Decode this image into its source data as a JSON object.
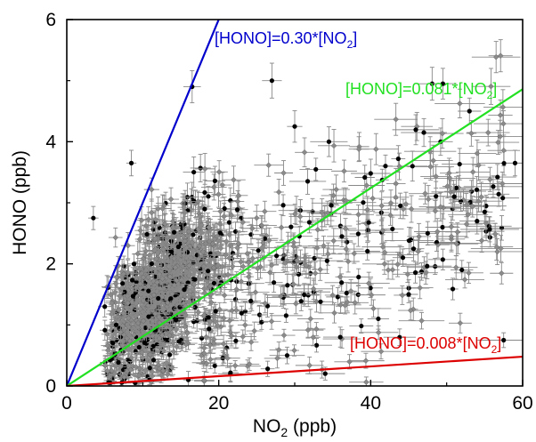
{
  "chart_data": {
    "type": "scatter",
    "title": "",
    "xlabel": "NO",
    "xlabel_sub": "2",
    "xlabel_unit": " (ppb)",
    "ylabel": "HONO (ppb)",
    "xlim": [
      0,
      60
    ],
    "ylim": [
      0,
      6
    ],
    "xticks": [
      0,
      20,
      40,
      60
    ],
    "yticks": [
      0,
      2,
      4,
      6
    ],
    "grid": false,
    "legend": "none",
    "lines": [
      {
        "slope": 0.3,
        "color": "#0000cc",
        "label_main": "[HONO]=0.30*[NO",
        "label_sub": "2",
        "label_end": "]"
      },
      {
        "slope": 0.081,
        "color": "#22e022",
        "label_main": "[HONO]=0.081*[NO",
        "label_sub": "2",
        "label_end": "]"
      },
      {
        "slope": 0.008,
        "color": "#dd0000",
        "label_main": "[HONO]=0.008*[NO",
        "label_sub": "2",
        "label_end": "]"
      }
    ],
    "scatter_colors": {
      "black": "#000000",
      "grey": "#8a8a8a",
      "errorbar": "#888888"
    },
    "n_points": 1400,
    "points": [
      [
        3.5,
        2.75
      ],
      [
        8.5,
        3.65
      ],
      [
        16.5,
        4.9
      ],
      [
        27.0,
        5.0
      ],
      [
        49.5,
        4.95
      ],
      [
        47.0,
        4.15
      ],
      [
        53.0,
        4.5
      ],
      [
        59.0,
        3.65
      ],
      [
        30.0,
        4.25
      ],
      [
        34.5,
        4.0
      ],
      [
        45.5,
        3.6
      ],
      [
        51.0,
        3.1
      ],
      [
        55.0,
        2.85
      ],
      [
        5.0,
        1.3
      ],
      [
        6.5,
        1.0
      ],
      [
        9.0,
        0.05
      ],
      [
        16.0,
        0.1
      ],
      [
        29.0,
        0.5
      ],
      [
        36.0,
        0.8
      ],
      [
        41.0,
        1.1
      ],
      [
        45.0,
        1.5
      ],
      [
        52.0,
        1.9
      ],
      [
        57.5,
        0.75
      ],
      [
        54.0,
        2.7
      ],
      [
        47.5,
        2.5
      ]
    ]
  }
}
